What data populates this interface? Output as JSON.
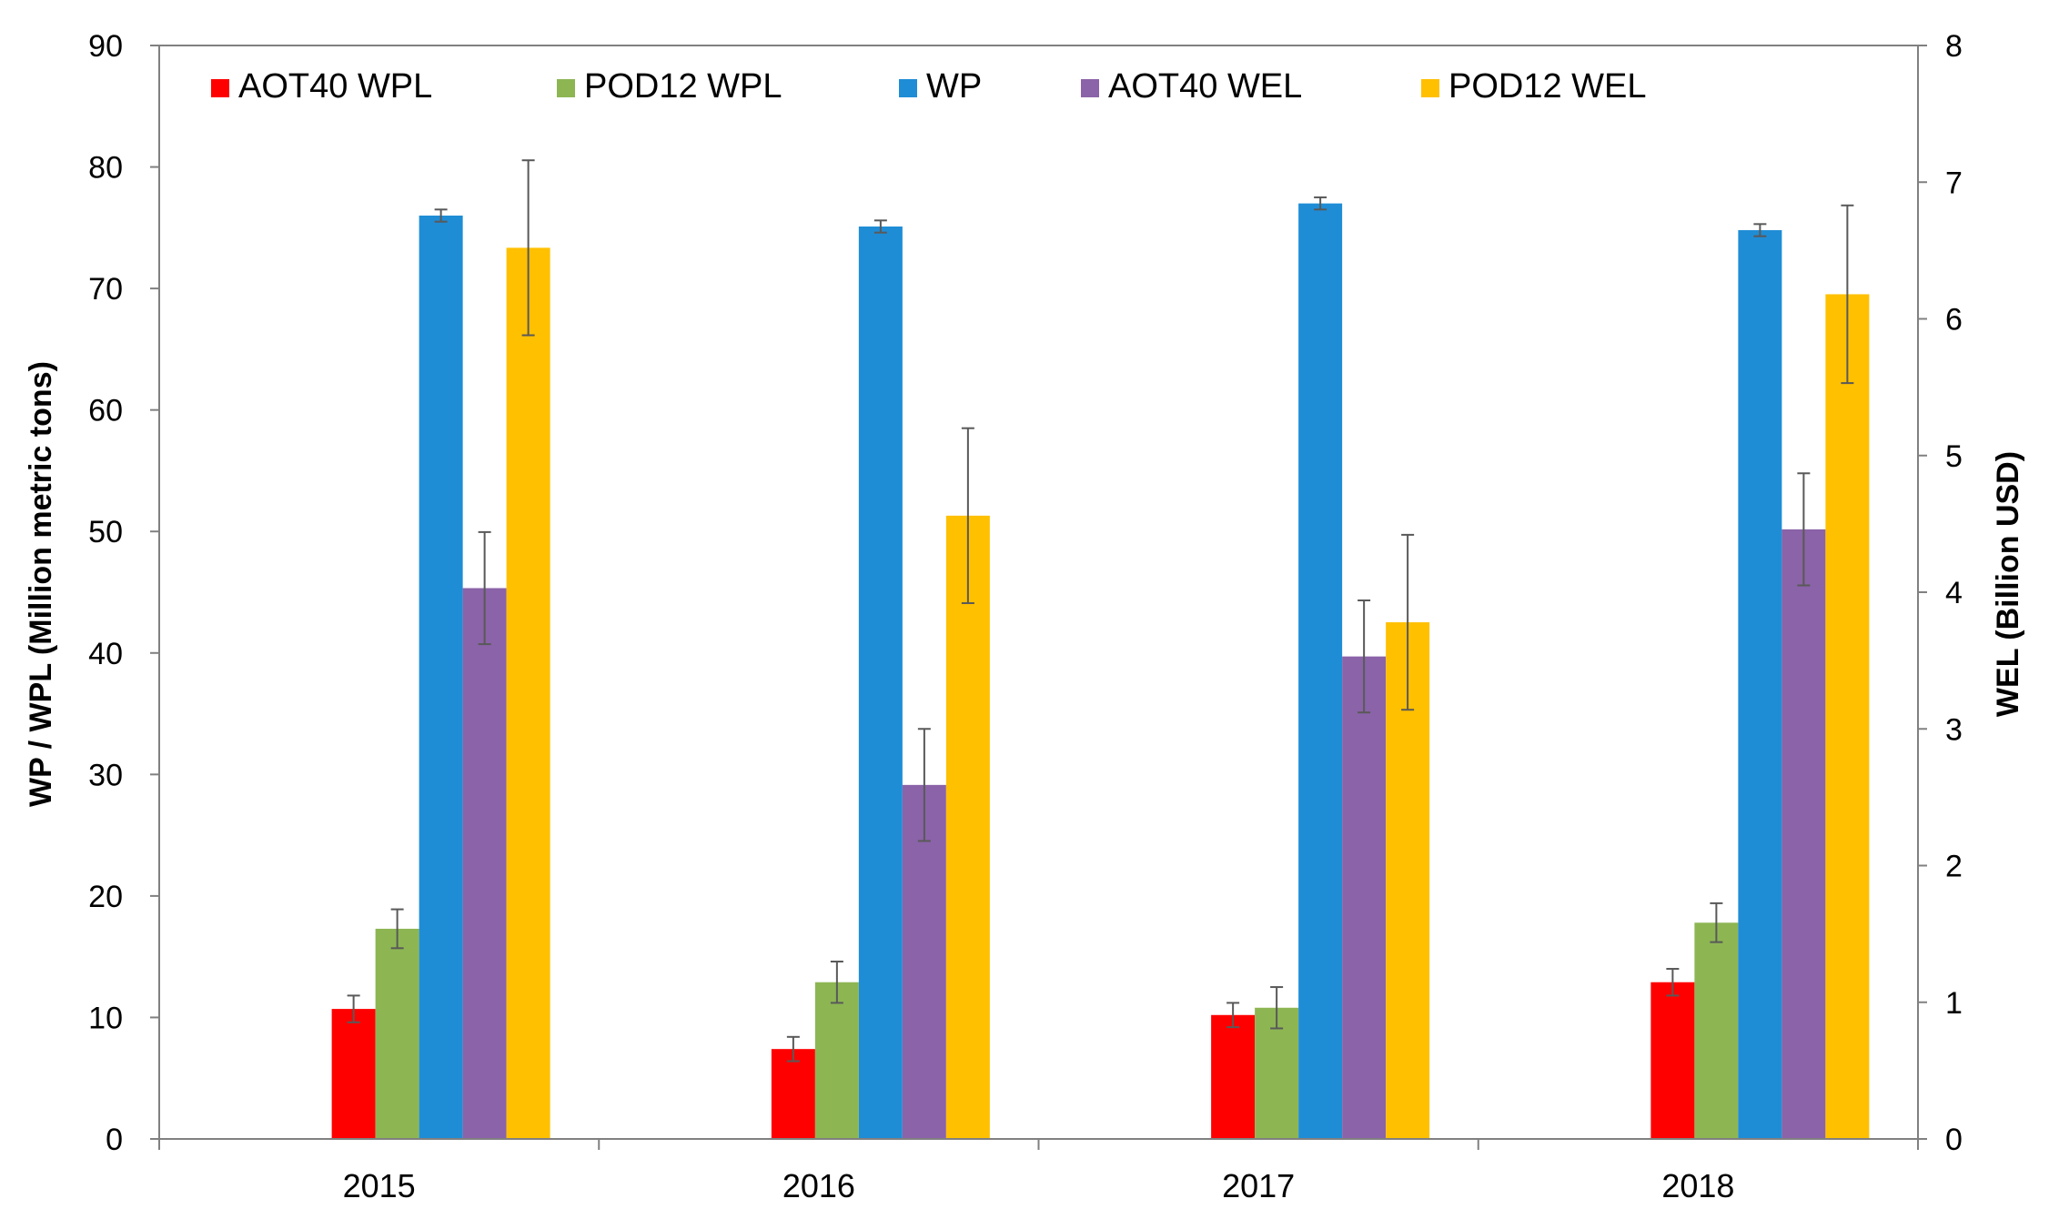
{
  "chart_data": {
    "type": "bar",
    "categories": [
      "2015",
      "2016",
      "2017",
      "2018"
    ],
    "ylabel": "WP / WPL (Million metric tons)",
    "y2label": "WEL (Billion USD)",
    "ylim": [
      0,
      90
    ],
    "y2lim": [
      0,
      8
    ],
    "yticks": [
      "0",
      "10",
      "20",
      "30",
      "40",
      "50",
      "60",
      "70",
      "80",
      "90"
    ],
    "y2ticks": [
      "0",
      "1",
      "2",
      "3",
      "4",
      "5",
      "6",
      "7",
      "8"
    ],
    "legend_position": "top",
    "series": [
      {
        "name": "AOT40 WPL",
        "axis": "left",
        "color": "#ff0000",
        "values": [
          10.7,
          7.4,
          10.2,
          12.9
        ],
        "errors": [
          1.1,
          1.0,
          1.0,
          1.1
        ]
      },
      {
        "name": "POD12 WPL",
        "axis": "left",
        "color": "#8db653",
        "values": [
          17.3,
          12.9,
          10.8,
          17.8
        ],
        "errors": [
          1.6,
          1.7,
          1.7,
          1.6
        ]
      },
      {
        "name": "WP",
        "axis": "left",
        "color": "#1f8dd6",
        "values": [
          76.0,
          75.1,
          77.0,
          74.8
        ],
        "errors": [
          0.5,
          0.5,
          0.5,
          0.5
        ]
      },
      {
        "name": "AOT40 WEL",
        "axis": "right",
        "color": "#8b63a8",
        "values": [
          4.03,
          2.59,
          3.53,
          4.46
        ],
        "errors": [
          0.41,
          0.41,
          0.41,
          0.41
        ]
      },
      {
        "name": "POD12 WEL",
        "axis": "right",
        "color": "#ffc000",
        "values": [
          6.52,
          4.56,
          3.78,
          6.18
        ],
        "errors": [
          0.64,
          0.64,
          0.64,
          0.65
        ]
      }
    ]
  }
}
